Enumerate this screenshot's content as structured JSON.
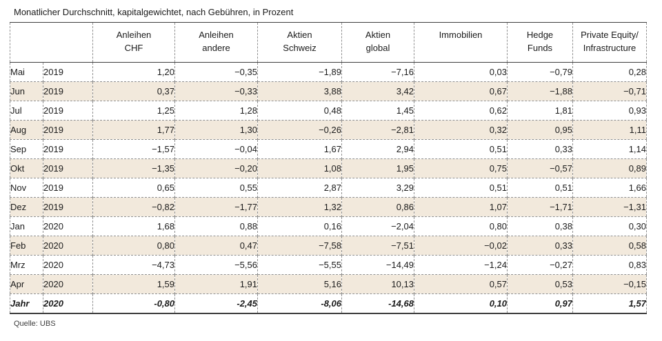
{
  "page": {
    "title": "Monatlicher Durchschnitt, kapitalgewichtet, nach Gebühren, in Prozent",
    "source": "Quelle: UBS"
  },
  "chart_data": {
    "type": "table",
    "title": "Monatlicher Durchschnitt, kapitalgewichtet, nach Gebühren, in Prozent",
    "source": "Quelle: UBS",
    "unit": "Prozent",
    "colors": {
      "row_shaded": "#f2e9dc",
      "border_dashed": "#8f8f8f",
      "border_solid": "#3c3c3c"
    },
    "columns": [
      {
        "id": "anleihen-chf",
        "lines": [
          "Anleihen",
          "CHF"
        ]
      },
      {
        "id": "anleihen-andere",
        "lines": [
          "Anleihen",
          "andere"
        ]
      },
      {
        "id": "aktien-schweiz",
        "lines": [
          "Aktien",
          "Schweiz"
        ]
      },
      {
        "id": "aktien-global",
        "lines": [
          "Aktien",
          "global"
        ]
      },
      {
        "id": "immobilien",
        "lines": [
          "Immobilien"
        ]
      },
      {
        "id": "hedge-funds",
        "lines": [
          "Hedge",
          "Funds"
        ]
      },
      {
        "id": "private-equity-infrastructure",
        "lines": [
          "Private Equity/",
          "Infrastructure"
        ]
      }
    ],
    "rows": [
      {
        "period": "Mai",
        "year": "2019",
        "values": [
          "1,20",
          "−0,35",
          "−1,89",
          "−7,16",
          "0,03",
          "−0,79",
          "0,28"
        ]
      },
      {
        "period": "Jun",
        "year": "2019",
        "values": [
          "0,37",
          "−0,33",
          "3,88",
          "3,42",
          "0,67",
          "−1,88",
          "−0,71"
        ]
      },
      {
        "period": "Jul",
        "year": "2019",
        "values": [
          "1,25",
          "1,28",
          "0,48",
          "1,45",
          "0,62",
          "1,81",
          "0,93"
        ]
      },
      {
        "period": "Aug",
        "year": "2019",
        "values": [
          "1,77",
          "1,30",
          "−0,26",
          "−2,81",
          "0,32",
          "0,95",
          "1,11"
        ]
      },
      {
        "period": "Sep",
        "year": "2019",
        "values": [
          "−1,57",
          "−0,04",
          "1,67",
          "2,94",
          "0,51",
          "0,33",
          "1,14"
        ]
      },
      {
        "period": "Okt",
        "year": "2019",
        "values": [
          "−1,35",
          "−0,20",
          "1,08",
          "1,95",
          "0,75",
          "−0,57",
          "0,89"
        ]
      },
      {
        "period": "Nov",
        "year": "2019",
        "values": [
          "0,65",
          "0,55",
          "2,87",
          "3,29",
          "0,51",
          "0,51",
          "1,66"
        ]
      },
      {
        "period": "Dez",
        "year": "2019",
        "values": [
          "−0,82",
          "−1,77",
          "1,32",
          "0,86",
          "1,07",
          "−1,71",
          "−1,31"
        ]
      },
      {
        "period": "Jan",
        "year": "2020",
        "values": [
          "1,68",
          "0,88",
          "0,16",
          "−2,04",
          "0,80",
          "0,38",
          "0,30"
        ]
      },
      {
        "period": "Feb",
        "year": "2020",
        "values": [
          "0,80",
          "0,47",
          "−7,58",
          "−7,51",
          "−0,02",
          "0,33",
          "0,58"
        ]
      },
      {
        "period": "Mrz",
        "year": "2020",
        "values": [
          "−4,73",
          "−5,56",
          "−5,55",
          "−14,49",
          "−1,24",
          "−0,27",
          "0,83"
        ]
      },
      {
        "period": "Apr",
        "year": "2020",
        "values": [
          "1,59",
          "1,91",
          "5,16",
          "10,13",
          "0,57",
          "0,53",
          "−0,15"
        ]
      },
      {
        "period": "Jahr",
        "year": "2020",
        "values": [
          "-0,80",
          "-2,45",
          "-8,06",
          "-14,68",
          "0,10",
          "0,97",
          "1,57"
        ],
        "total": true
      }
    ]
  }
}
